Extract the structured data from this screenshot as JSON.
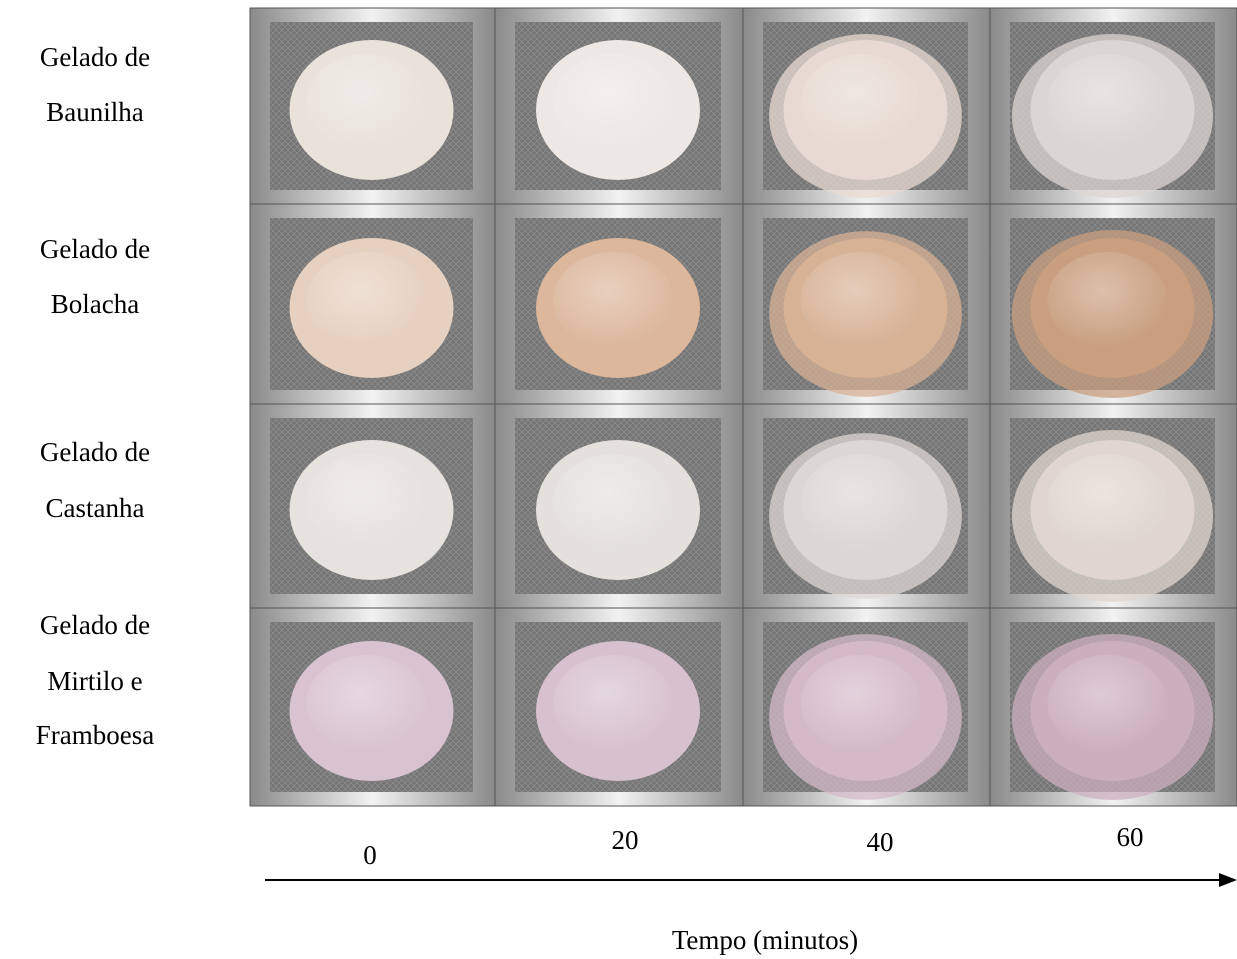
{
  "rows": [
    {
      "label": [
        "Gelado de",
        "Baunilha"
      ]
    },
    {
      "label": [
        "Gelado de",
        "Bolacha"
      ]
    },
    {
      "label": [
        "Gelado de",
        "Castanha"
      ]
    },
    {
      "label": [
        "Gelado de",
        "Mirtilo e",
        "Framboesa"
      ]
    }
  ],
  "time_labels": [
    0,
    20,
    40,
    60
  ],
  "axis_label": "Tempo (minutos)"
}
